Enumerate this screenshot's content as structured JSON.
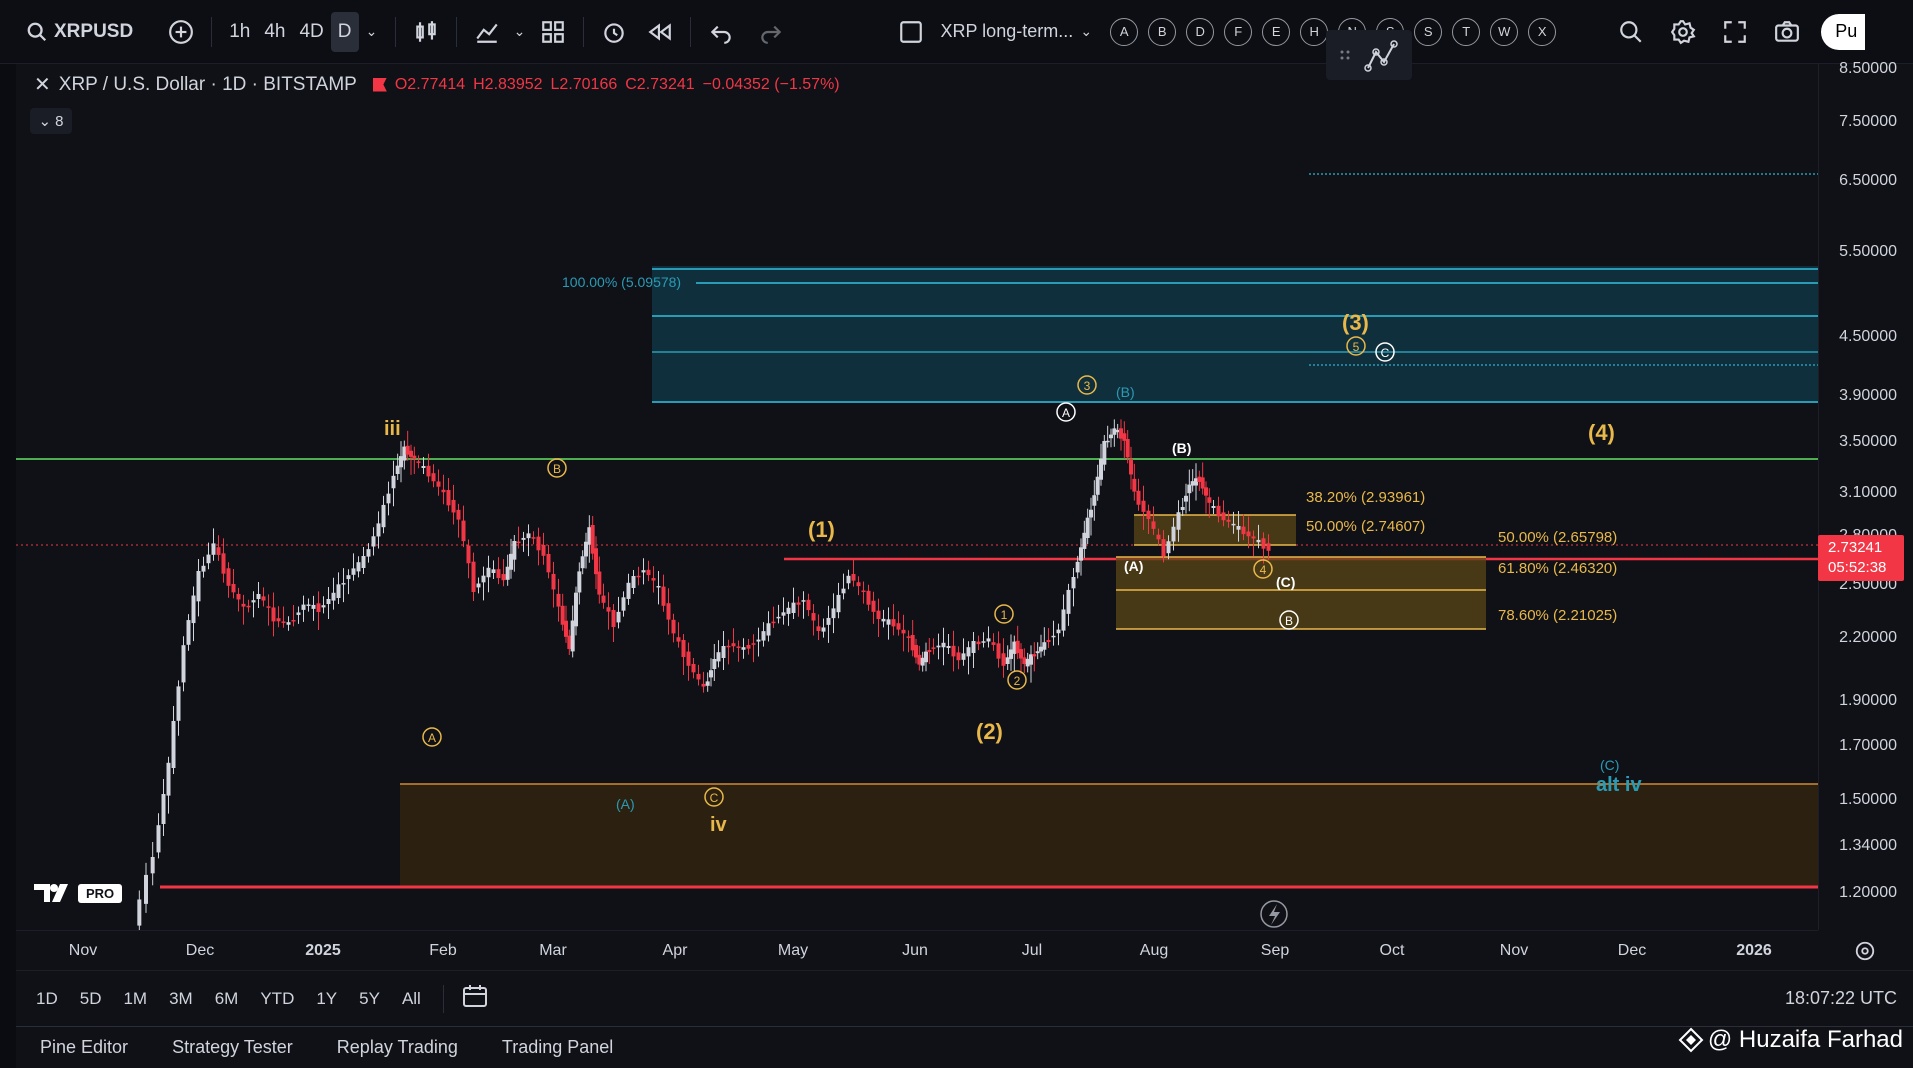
{
  "toolbar": {
    "symbol": "XRPUSD",
    "timeframes": [
      "1h",
      "4h",
      "4D",
      "D"
    ],
    "active_timeframe": "D",
    "layout_name": "XRP long-term...",
    "letter_buttons": [
      "A",
      "B",
      "D",
      "F",
      "E",
      "H",
      "N",
      "S",
      "S",
      "T",
      "W",
      "X"
    ],
    "publish_label": "Pu"
  },
  "legend": {
    "title": "XRP / U.S. Dollar · 1D · BITSTAMP",
    "open": "O2.77414",
    "high": "H2.83952",
    "low": "L2.70166",
    "close": "C2.73241",
    "change": "−0.04352 (−1.57%)",
    "collapse_count": "8"
  },
  "price_axis": {
    "labels": [
      "8.50000",
      "7.50000",
      "6.50000",
      "5.50000",
      "4.50000",
      "3.90000",
      "3.50000",
      "3.10000",
      "2.80000",
      "2.50000",
      "2.20000",
      "1.90000",
      "1.70000",
      "1.50000",
      "1.34000",
      "1.20000"
    ],
    "current_price": "2.73241",
    "countdown": "05:52:38"
  },
  "time_axis": {
    "labels": [
      "Nov",
      "Dec",
      "2025",
      "Feb",
      "Mar",
      "Apr",
      "May",
      "Jun",
      "Jul",
      "Aug",
      "Sep",
      "Oct",
      "Nov",
      "Dec",
      "2026"
    ]
  },
  "annotations": {
    "fib_top": "100.00% (5.09578)",
    "fib_382": "38.20% (2.93961)",
    "fib_500": "50.00% (2.74607)",
    "fib2_500": "50.00% (2.65798)",
    "fib2_618": "61.80% (2.46320)",
    "fib2_786": "78.60% (2.21025)",
    "wave_iii": "iii",
    "wave_iv": "iv",
    "wave_1": "(1)",
    "wave_2": "(2)",
    "wave_3": "(3)",
    "wave_4": "(4)",
    "wave_A_cyan": "(A)",
    "wave_B_cyan": "(B)",
    "wave_C_cyan": "(C)",
    "alt_iv": "alt iv",
    "wave_A_white": "(A)",
    "wave_B_white": "(B)",
    "wave_C_white": "(C)"
  },
  "bottom": {
    "ranges": [
      "1D",
      "5D",
      "1M",
      "3M",
      "6M",
      "YTD",
      "1Y",
      "5Y",
      "All"
    ],
    "clock": "18:07:22 UTC"
  },
  "panel_tabs": [
    "Pine Editor",
    "Strategy Tester",
    "Replay Trading",
    "Trading Panel"
  ],
  "watermark": "@ Huzaifa Farhad",
  "logo_text": "PRO",
  "colors": {
    "up": "#d1d4dc",
    "down": "#f23645",
    "fib_cyan": "#2a9bb5",
    "gold": "#e9b84a",
    "green_line": "#4caf50",
    "red_line": "#f23645"
  }
}
